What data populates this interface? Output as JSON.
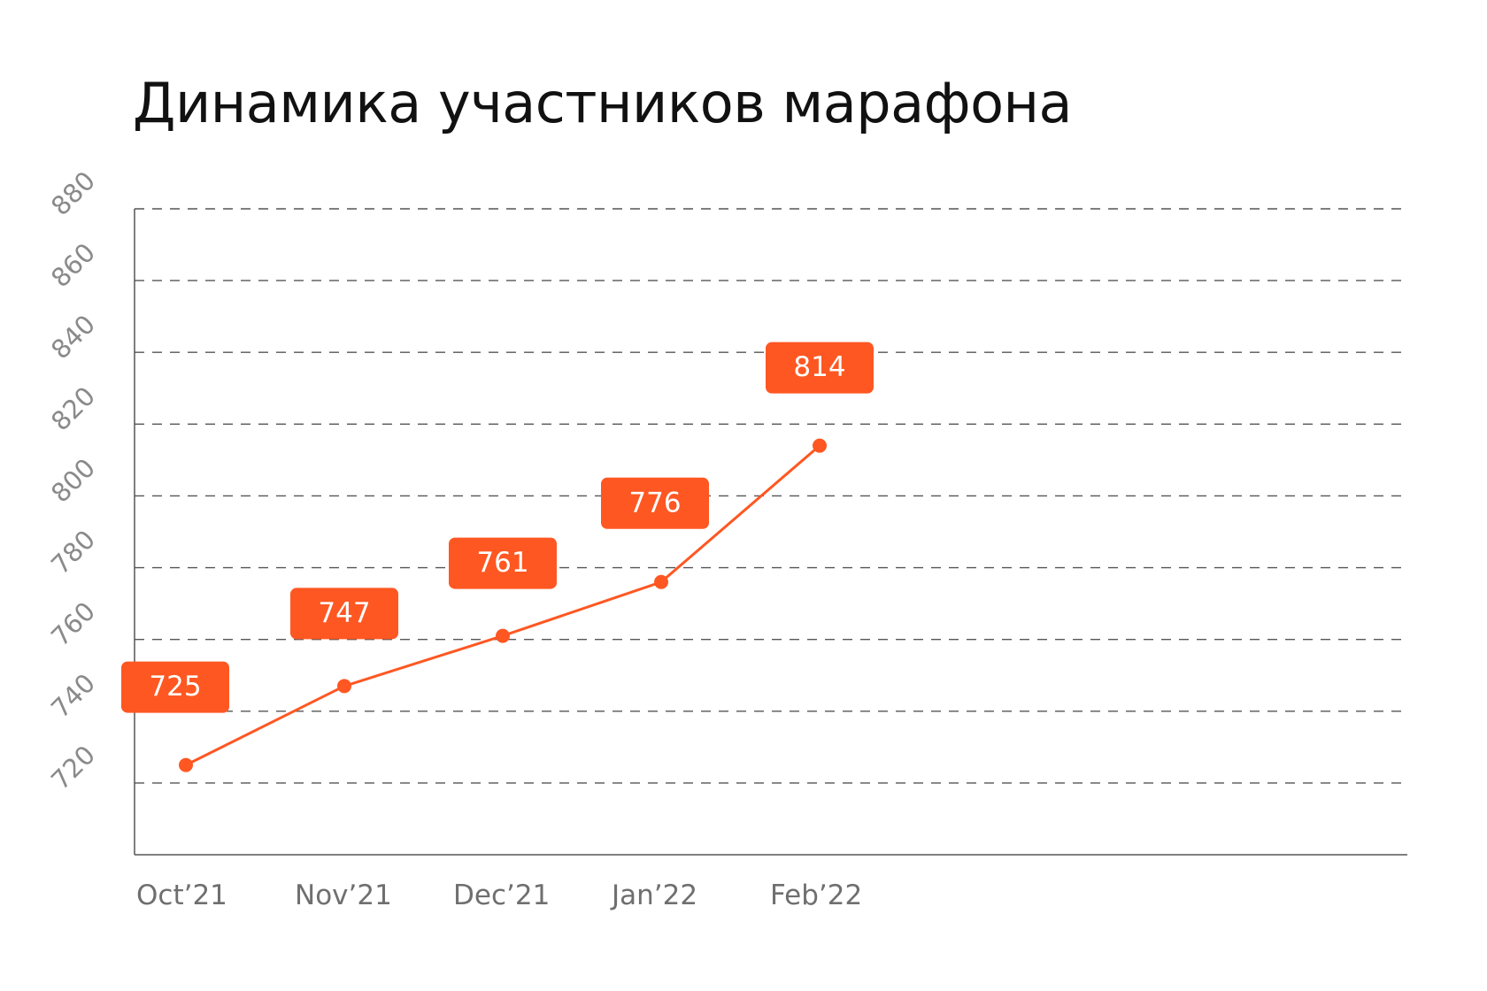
{
  "chart_data": {
    "type": "line",
    "title": "Динамика участников марафона",
    "xlabel": "",
    "ylabel": "",
    "categories": [
      "Oct’21",
      "Nov’21",
      "Dec’21",
      "Jan’22",
      "Feb’22"
    ],
    "series": [
      {
        "values": [
          725,
          747,
          761,
          776,
          814
        ]
      }
    ],
    "yticks": [
      720,
      740,
      760,
      780,
      800,
      820,
      840,
      860,
      880
    ],
    "ylim": [
      700,
      880
    ],
    "grid": true,
    "legend": "none",
    "colors": {
      "series": "#ff5722",
      "grid": "#555555",
      "axis": "#555555"
    }
  }
}
